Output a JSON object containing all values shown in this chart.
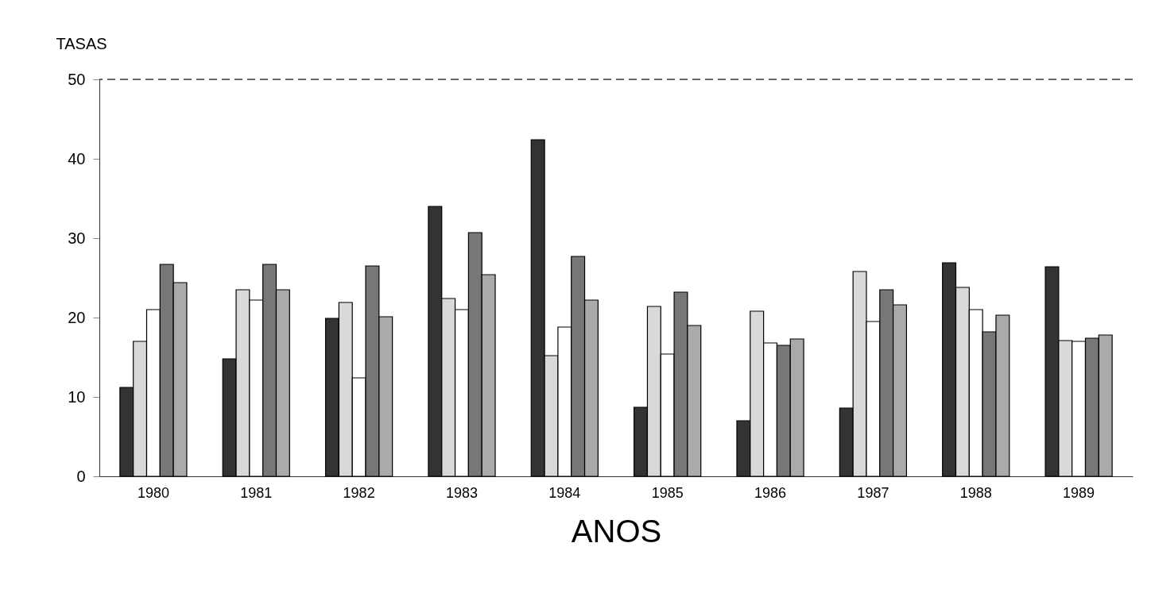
{
  "chart_data": {
    "type": "bar",
    "xlabel": "ANOS",
    "ylabel": "TASAS",
    "categories": [
      "1980",
      "1981",
      "1982",
      "1983",
      "1984",
      "1985",
      "1986",
      "1987",
      "1988",
      "1989"
    ],
    "series": [
      {
        "color": "#333333",
        "values": [
          11.2,
          14.8,
          19.9,
          34,
          42.4,
          8.7,
          7,
          8.6,
          26.9,
          26.4
        ]
      },
      {
        "color": "#d9d9d9",
        "values": [
          17,
          23.5,
          21.9,
          22.4,
          15.2,
          21.4,
          20.8,
          25.8,
          23.8,
          17.1
        ]
      },
      {
        "color": "#ffffff",
        "values": [
          21,
          22.2,
          12.4,
          21,
          18.8,
          15.4,
          16.8,
          19.5,
          21,
          17
        ]
      },
      {
        "color": "#777777",
        "values": [
          26.7,
          26.7,
          26.5,
          30.7,
          27.7,
          23.2,
          16.5,
          23.5,
          18.2,
          17.4
        ]
      },
      {
        "color": "#aaaaaa",
        "values": [
          24.4,
          23.5,
          20.1,
          25.4,
          22.2,
          19,
          17.3,
          21.6,
          20.3,
          17.8
        ]
      }
    ],
    "ylim": [
      0,
      50
    ],
    "yticks": [
      0,
      10,
      20,
      30,
      40,
      50
    ],
    "ref_lines": [
      {
        "axis": "y",
        "value": 50,
        "line_style": "dashed",
        "color": "#333333"
      }
    ],
    "grid": false,
    "legend": false
  }
}
